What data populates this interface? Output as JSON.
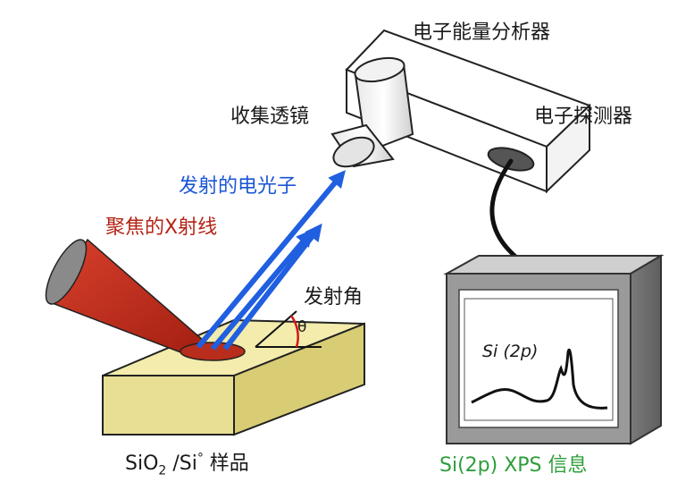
{
  "labels": {
    "analyzer": "电子能量分析器",
    "collection_lens": "收集透镜",
    "detector": "电子探测器",
    "photoelectrons": "发射的电光子",
    "xray": "聚焦的X射线",
    "emission_angle": "发射角",
    "theta": "θ",
    "sample_prefix": "SiO",
    "sample_sub": "2",
    "sample_mid": " /Si",
    "sample_sup": "°",
    "sample_suffix": " 样品",
    "spectrum_label": "Si (2p)",
    "output": "Si(2p) XPS 信息"
  },
  "colors": {
    "photoelectron_arrow": "#1f5fe0",
    "photoelectron_text": "#1a55d6",
    "xray_beam": "#c0311f",
    "xray_text": "#b52315",
    "output_text": "#2e9e3a",
    "sample_top": "#f4ecae",
    "sample_side": "#d9cd7a",
    "spot": "#b82d1c",
    "monitor_frame": "#8d8d8d",
    "analyzer_body": "#ffffff"
  }
}
